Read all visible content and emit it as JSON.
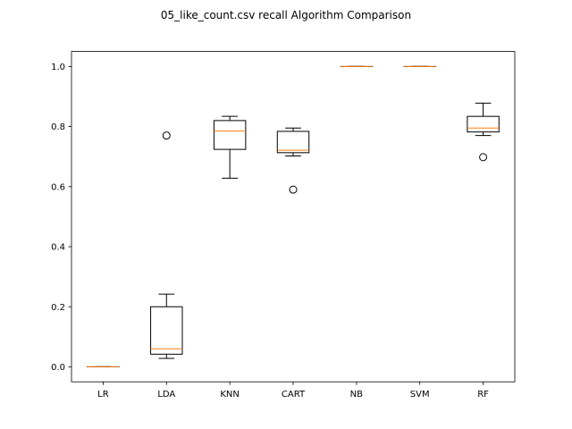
{
  "chart_data": {
    "type": "boxplot",
    "title": "05_like_count.csv recall Algorithm Comparison",
    "xlabel": "",
    "ylabel": "",
    "ylim": [
      -0.05,
      1.05
    ],
    "yticks": [
      0.0,
      0.2,
      0.4,
      0.6,
      0.8,
      1.0
    ],
    "ytick_labels": [
      "0.0",
      "0.2",
      "0.4",
      "0.6",
      "0.8",
      "1.0"
    ],
    "categories": [
      "LR",
      "LDA",
      "KNN",
      "CART",
      "NB",
      "SVM",
      "RF"
    ],
    "boxes": [
      {
        "name": "LR",
        "whisker_low": 0.0,
        "q1": 0.0,
        "median": 0.0,
        "q3": 0.0,
        "whisker_high": 0.0,
        "outliers": []
      },
      {
        "name": "LDA",
        "whisker_low": 0.028,
        "q1": 0.042,
        "median": 0.06,
        "q3": 0.2,
        "whisker_high": 0.242,
        "outliers": [
          0.77
        ]
      },
      {
        "name": "KNN",
        "whisker_low": 0.628,
        "q1": 0.724,
        "median": 0.785,
        "q3": 0.82,
        "whisker_high": 0.834,
        "outliers": []
      },
      {
        "name": "CART",
        "whisker_low": 0.702,
        "q1": 0.713,
        "median": 0.721,
        "q3": 0.784,
        "whisker_high": 0.795,
        "outliers": [
          0.59
        ]
      },
      {
        "name": "NB",
        "whisker_low": 1.0,
        "q1": 1.0,
        "median": 1.0,
        "q3": 1.0,
        "whisker_high": 1.0,
        "outliers": []
      },
      {
        "name": "SVM",
        "whisker_low": 1.0,
        "q1": 1.0,
        "median": 1.0,
        "q3": 1.0,
        "whisker_high": 1.0,
        "outliers": []
      },
      {
        "name": "RF",
        "whisker_low": 0.77,
        "q1": 0.782,
        "median": 0.795,
        "q3": 0.834,
        "whisker_high": 0.878,
        "outliers": [
          0.698
        ]
      }
    ],
    "colors": {
      "box": "#000000",
      "median": "#ff7f0e",
      "axes": "#000000",
      "background": "#ffffff"
    },
    "grid": false,
    "legend": "none"
  }
}
